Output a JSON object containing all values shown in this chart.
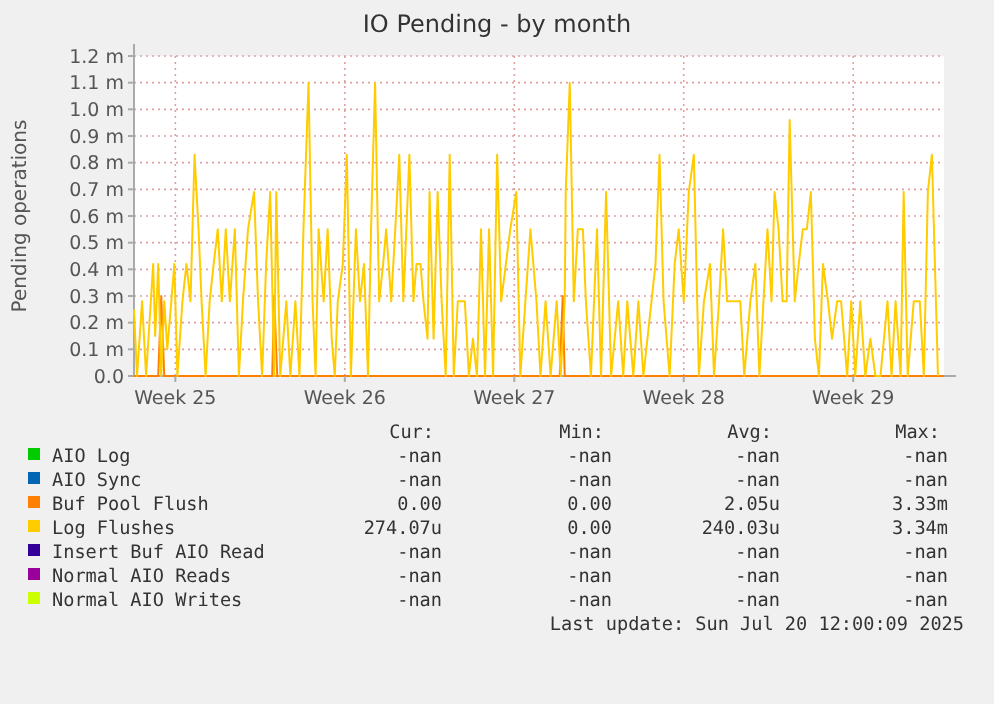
{
  "chart_data": {
    "type": "line",
    "title": "IO Pending - by month",
    "ylabel": "Pending operations",
    "xlim": [
      "2025-06-18T00:00",
      "2025-07-21T11:00"
    ],
    "xticks": [
      {
        "value": "2025-06-19T17:00",
        "label": "Week 25"
      },
      {
        "value": "2025-06-26T17:00",
        "label": "Week 26"
      },
      {
        "value": "2025-07-03T17:00",
        "label": "Week 27"
      },
      {
        "value": "2025-07-10T17:00",
        "label": "Week 28"
      },
      {
        "value": "2025-07-17T17:00",
        "label": "Week 29"
      }
    ],
    "ylim": [
      0,
      1.2
    ],
    "yticks": [
      {
        "value": 0,
        "label": "0.0"
      },
      {
        "value": 0.1,
        "label": "0.1 m"
      },
      {
        "value": 0.2,
        "label": "0.2 m"
      },
      {
        "value": 0.3,
        "label": "0.3 m"
      },
      {
        "value": 0.4,
        "label": "0.4 m"
      },
      {
        "value": 0.5,
        "label": "0.5 m"
      },
      {
        "value": 0.6,
        "label": "0.6 m"
      },
      {
        "value": 0.7,
        "label": "0.7 m"
      },
      {
        "value": 0.8,
        "label": "0.8 m"
      },
      {
        "value": 0.9,
        "label": "0.9 m"
      },
      {
        "value": 1.0,
        "label": "1.0 m"
      },
      {
        "value": 1.1,
        "label": "1.1 m"
      },
      {
        "value": 1.2,
        "label": "1.2 m"
      }
    ],
    "grid": true,
    "legend": "bottom",
    "marker": "none",
    "line_style": "solid",
    "series": [
      {
        "name": "AIO Log",
        "color": "#00cc00"
      },
      {
        "name": "AIO Sync",
        "color": "#0066b3"
      },
      {
        "name": "Buf Pool Flush",
        "color": "#ff8000",
        "x": [
          "2025-06-18T00:00",
          "2025-06-19T00:00",
          "2025-06-19T03:00",
          "2025-06-19T06:00",
          "2025-06-23T17:00",
          "2025-06-23T19:00",
          "2025-06-23T22:00",
          "2025-07-05T14:00",
          "2025-07-05T17:00",
          "2025-07-05T19:00",
          "2025-07-21T11:00"
        ],
        "values": [
          0,
          0,
          0.3,
          0,
          0,
          0.3,
          0,
          0,
          0.3,
          0,
          0
        ]
      },
      {
        "name": "Log Flushes",
        "color": "#ffcc00",
        "x": [
          "2025-06-18T00:00",
          "2025-06-18T03:00",
          "2025-06-18T08:00",
          "2025-06-18T12:00",
          "2025-06-18T19:00",
          "2025-06-18T21:00",
          "2025-06-19T00:00",
          "2025-06-19T03:00",
          "2025-06-19T06:00",
          "2025-06-19T09:00",
          "2025-06-19T13:00",
          "2025-06-19T16:00",
          "2025-06-19T19:00",
          "2025-06-20T00:00",
          "2025-06-20T04:00",
          "2025-06-20T08:00",
          "2025-06-20T12:00",
          "2025-06-20T16:00",
          "2025-06-20T19:00",
          "2025-06-20T23:00",
          "2025-06-21T03:00",
          "2025-06-21T07:00",
          "2025-06-21T11:00",
          "2025-06-21T15:00",
          "2025-06-21T19:00",
          "2025-06-21T23:00",
          "2025-06-22T04:00",
          "2025-06-22T08:00",
          "2025-06-22T12:00",
          "2025-06-22T17:00",
          "2025-06-22T23:00",
          "2025-06-23T03:00",
          "2025-06-23T07:00",
          "2025-06-23T11:00",
          "2025-06-23T15:00",
          "2025-06-23T19:00",
          "2025-06-23T21:00",
          "2025-06-24T01:00",
          "2025-06-24T07:00",
          "2025-06-24T11:00",
          "2025-06-24T16:00",
          "2025-06-24T20:00",
          "2025-06-25T00:00",
          "2025-06-25T05:00",
          "2025-06-25T09:00",
          "2025-06-25T12:00",
          "2025-06-25T15:00",
          "2025-06-25T20:00",
          "2025-06-26T00:00",
          "2025-06-26T04:00",
          "2025-06-26T07:00",
          "2025-06-26T10:00",
          "2025-06-26T15:00",
          "2025-06-26T19:00",
          "2025-06-26T23:00",
          "2025-06-27T04:00",
          "2025-06-27T08:00",
          "2025-06-27T12:00",
          "2025-06-27T16:00",
          "2025-06-27T19:00",
          "2025-06-27T23:00",
          "2025-06-28T03:00",
          "2025-06-28T07:00",
          "2025-06-28T10:00",
          "2025-06-28T15:00",
          "2025-06-28T19:00",
          "2025-06-28T23:00",
          "2025-06-29T03:00",
          "2025-06-29T06:00",
          "2025-06-29T09:00",
          "2025-06-29T13:00",
          "2025-06-29T16:00",
          "2025-06-29T20:00",
          "2025-06-29T23:00",
          "2025-06-30T03:00",
          "2025-06-30T05:00",
          "2025-06-30T09:00",
          "2025-06-30T13:00",
          "2025-06-30T17:00",
          "2025-06-30T21:00",
          "2025-07-01T01:00",
          "2025-07-01T05:00",
          "2025-07-01T09:00",
          "2025-07-01T16:00",
          "2025-07-01T20:00",
          "2025-07-02T00:00",
          "2025-07-02T04:00",
          "2025-07-02T08:00",
          "2025-07-02T12:00",
          "2025-07-02T16:00",
          "2025-07-02T20:00",
          "2025-07-03T00:00",
          "2025-07-03T04:00",
          "2025-07-03T13:00",
          "2025-07-03T19:00",
          "2025-07-03T23:00",
          "2025-07-04T04:00",
          "2025-07-04T09:00",
          "2025-07-04T15:00",
          "2025-07-04T19:00",
          "2025-07-05T00:00",
          "2025-07-05T05:00",
          "2025-07-05T11:00",
          "2025-07-05T15:00",
          "2025-07-05T19:00",
          "2025-07-05T20:00",
          "2025-07-06T00:00",
          "2025-07-06T04:00",
          "2025-07-06T08:00",
          "2025-07-06T13:00",
          "2025-07-06T16:00",
          "2025-07-06T21:00",
          "2025-07-07T03:00",
          "2025-07-07T07:00",
          "2025-07-07T12:00",
          "2025-07-07T17:00",
          "2025-07-08T00:00",
          "2025-07-08T05:00",
          "2025-07-08T09:00",
          "2025-07-08T15:00",
          "2025-07-08T20:00",
          "2025-07-09T01:00",
          "2025-07-09T13:00",
          "2025-07-09T17:00",
          "2025-07-09T21:00",
          "2025-07-10T03:00",
          "2025-07-10T08:00",
          "2025-07-10T12:00",
          "2025-07-10T17:00",
          "2025-07-10T22:00",
          "2025-07-11T03:00",
          "2025-07-11T08:00",
          "2025-07-11T13:00",
          "2025-07-11T19:00",
          "2025-07-11T23:00",
          "2025-07-12T04:00",
          "2025-07-12T08:00",
          "2025-07-12T12:00",
          "2025-07-12T17:00",
          "2025-07-12T21:00",
          "2025-07-13T01:00",
          "2025-07-13T05:00",
          "2025-07-13T11:00",
          "2025-07-13T16:00",
          "2025-07-13T20:00",
          "2025-07-14T00:00",
          "2025-07-14T04:00",
          "2025-07-14T08:00",
          "2025-07-14T11:00",
          "2025-07-14T15:00",
          "2025-07-14T19:00",
          "2025-07-14T23:00",
          "2025-07-15T02:00",
          "2025-07-15T07:00",
          "2025-07-15T11:00",
          "2025-07-15T15:00",
          "2025-07-15T19:00",
          "2025-07-15T23:00",
          "2025-07-16T03:00",
          "2025-07-16T07:00",
          "2025-07-16T11:00",
          "2025-07-16T16:00",
          "2025-07-16T20:00",
          "2025-07-17T01:00",
          "2025-07-17T05:00",
          "2025-07-17T11:00",
          "2025-07-17T15:00",
          "2025-07-17T19:00",
          "2025-07-18T00:00",
          "2025-07-18T05:00",
          "2025-07-18T10:00",
          "2025-07-18T15:00",
          "2025-07-18T20:00",
          "2025-07-19T03:00",
          "2025-07-19T07:00",
          "2025-07-19T11:00",
          "2025-07-19T16:00",
          "2025-07-19T19:00",
          "2025-07-19T23:00",
          "2025-07-20T05:00",
          "2025-07-20T11:00",
          "2025-07-20T15:00",
          "2025-07-20T19:00",
          "2025-07-20T23:00",
          "2025-07-21T03:00",
          "2025-07-21T05:00"
        ],
        "values": [
          0.25,
          0,
          0.28,
          0,
          0.42,
          0.15,
          0.42,
          0,
          0.28,
          0.1,
          0.28,
          0.42,
          0,
          0.28,
          0.42,
          0.28,
          0.83,
          0.55,
          0.28,
          0,
          0.28,
          0.42,
          0.55,
          0.28,
          0.55,
          0.28,
          0.55,
          0,
          0.28,
          0.55,
          0.69,
          0.28,
          0,
          0.42,
          0.69,
          0,
          0.69,
          0,
          0.28,
          0,
          0.28,
          0,
          0.55,
          1.1,
          0.28,
          0,
          0.55,
          0.28,
          0.55,
          0.14,
          0,
          0.28,
          0.42,
          0.83,
          0,
          0.55,
          0.28,
          0.42,
          0,
          0.55,
          1.1,
          0.28,
          0.42,
          0.55,
          0.28,
          0.55,
          0.83,
          0.28,
          0.55,
          0.83,
          0.28,
          0.42,
          0.42,
          0.28,
          0.14,
          0.69,
          0.14,
          0.69,
          0.28,
          0,
          0.83,
          0,
          0.28,
          0.28,
          0,
          0.14,
          0,
          0.55,
          0,
          0.55,
          0,
          0.83,
          0.28,
          0.55,
          0.69,
          0,
          0.28,
          0.55,
          0.28,
          0,
          0.28,
          0,
          0.28,
          0,
          0.28,
          0.69,
          1.1,
          0.28,
          0.55,
          0.55,
          0.28,
          0,
          0.55,
          0,
          0.69,
          0,
          0.28,
          0,
          0.28,
          0,
          0.28,
          0,
          0.42,
          0.83,
          0.28,
          0,
          0.42,
          0.55,
          0.28,
          0.69,
          0.83,
          0,
          0.28,
          0.42,
          0,
          0.28,
          0.55,
          0.28,
          0.28,
          0.28,
          0.28,
          0,
          0.28,
          0.42,
          0,
          0.28,
          0.55,
          0.28,
          0.69,
          0.55,
          0.28,
          0.28,
          0.96,
          0.28,
          0.42,
          0.55,
          0.55,
          0.69,
          0.14,
          0,
          0.42,
          0.28,
          0.14,
          0.28,
          0.28,
          0,
          0.28,
          0,
          0.28,
          0,
          0.14,
          0,
          0,
          0.28,
          0,
          0.28,
          0,
          0.69,
          0,
          0.28,
          0.28,
          0,
          0.69,
          0.83,
          0.28,
          0
        ]
      },
      {
        "name": "Insert Buf AIO Read",
        "color": "#330099"
      },
      {
        "name": "Normal AIO Reads",
        "color": "#990099"
      },
      {
        "name": "Normal AIO Writes",
        "color": "#ccff00"
      }
    ],
    "annotations": [
      "Cur:",
      "Min:",
      "Avg:",
      "Max:",
      "-nan",
      "-nan",
      "-nan",
      "-nan",
      "-nan",
      "-nan",
      "-nan",
      "-nan",
      "0.00",
      "0.00",
      "2.05u",
      "3.33m",
      "274.07u",
      "0.00",
      "240.03u",
      "3.34m",
      "-nan",
      "-nan",
      "-nan",
      "-nan",
      "-nan",
      "-nan",
      "-nan",
      "-nan",
      "-nan",
      "-nan",
      "-nan",
      "-nan",
      "Last update: Sun Jul 20 12:00:09 2025"
    ]
  }
}
